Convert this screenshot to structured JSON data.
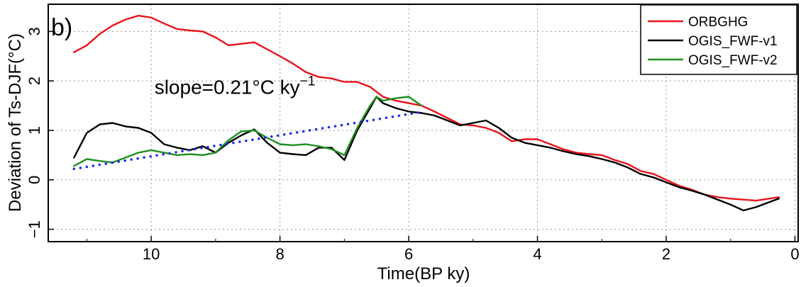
{
  "chart_data": {
    "type": "line",
    "panel_label": "b)",
    "xlabel": "Time(BP ky)",
    "ylabel": "Deviation of Ts-DJF(°C)",
    "xlim": [
      11.6,
      -0.05
    ],
    "ylim": [
      -1.25,
      3.55
    ],
    "x_reversed": true,
    "xticks": [
      10,
      8,
      6,
      4,
      2,
      0
    ],
    "xtick_labels": [
      "10",
      "8",
      "6",
      "4",
      "2",
      "0"
    ],
    "yticks": [
      -1,
      0,
      1,
      2,
      3
    ],
    "ytick_labels": [
      "−1",
      "0",
      "1",
      "2",
      "3"
    ],
    "grid": true,
    "legend_position": "top-right",
    "annotation": {
      "prefix": "slope=0.21°C ky",
      "superscript": "−1",
      "x": 9.95,
      "y": 1.74
    },
    "series": [
      {
        "name": "ORBGHG",
        "color": "#e8131b",
        "style": "solid",
        "x": [
          11.2,
          11.0,
          10.8,
          10.6,
          10.4,
          10.2,
          10.0,
          9.8,
          9.6,
          9.4,
          9.2,
          9.0,
          8.8,
          8.6,
          8.4,
          8.2,
          8.0,
          7.8,
          7.6,
          7.4,
          7.2,
          7.0,
          6.8,
          6.6,
          6.4,
          6.2,
          6.0,
          5.8,
          5.6,
          5.4,
          5.2,
          5.0,
          4.8,
          4.6,
          4.4,
          4.2,
          4.0,
          3.8,
          3.6,
          3.4,
          3.2,
          3.0,
          2.8,
          2.6,
          2.4,
          2.2,
          2.0,
          1.8,
          1.6,
          1.4,
          1.2,
          1.0,
          0.8,
          0.6,
          0.4,
          0.25
        ],
        "values": [
          2.58,
          2.72,
          2.95,
          3.12,
          3.24,
          3.32,
          3.28,
          3.16,
          3.05,
          3.02,
          3.0,
          2.88,
          2.72,
          2.75,
          2.78,
          2.64,
          2.5,
          2.35,
          2.18,
          2.08,
          2.05,
          1.98,
          1.98,
          1.88,
          1.68,
          1.6,
          1.55,
          1.5,
          1.38,
          1.25,
          1.12,
          1.1,
          1.05,
          0.95,
          0.78,
          0.82,
          0.82,
          0.72,
          0.62,
          0.55,
          0.52,
          0.5,
          0.4,
          0.32,
          0.18,
          0.12,
          0.0,
          -0.12,
          -0.2,
          -0.3,
          -0.35,
          -0.38,
          -0.4,
          -0.42,
          -0.38,
          -0.35
        ]
      },
      {
        "name": "OGIS_FWF-v1",
        "color": "#000000",
        "style": "solid",
        "x": [
          11.2,
          11.0,
          10.8,
          10.6,
          10.4,
          10.2,
          10.0,
          9.8,
          9.6,
          9.4,
          9.2,
          9.0,
          8.8,
          8.6,
          8.4,
          8.2,
          8.0,
          7.8,
          7.6,
          7.4,
          7.2,
          7.0,
          6.8,
          6.6,
          6.5,
          6.4,
          6.2,
          6.0,
          5.8,
          5.6,
          5.4,
          5.2,
          5.0,
          4.8,
          4.6,
          4.4,
          4.2,
          4.0,
          3.8,
          3.6,
          3.4,
          3.2,
          3.0,
          2.8,
          2.6,
          2.4,
          2.2,
          2.0,
          1.8,
          1.6,
          1.4,
          1.2,
          1.0,
          0.8,
          0.6,
          0.4,
          0.25
        ],
        "values": [
          0.45,
          0.95,
          1.12,
          1.15,
          1.08,
          1.05,
          0.95,
          0.72,
          0.65,
          0.6,
          0.68,
          0.55,
          0.75,
          0.9,
          1.02,
          0.75,
          0.55,
          0.52,
          0.5,
          0.65,
          0.65,
          0.4,
          1.0,
          1.45,
          1.68,
          1.55,
          1.45,
          1.38,
          1.35,
          1.3,
          1.2,
          1.1,
          1.15,
          1.2,
          1.05,
          0.85,
          0.75,
          0.7,
          0.65,
          0.58,
          0.52,
          0.48,
          0.42,
          0.35,
          0.25,
          0.12,
          0.05,
          -0.05,
          -0.15,
          -0.22,
          -0.3,
          -0.4,
          -0.5,
          -0.62,
          -0.55,
          -0.45,
          -0.38
        ]
      },
      {
        "name": "OGIS_FWF-v2",
        "color": "#1f8f1f",
        "style": "solid",
        "x": [
          11.2,
          11.0,
          10.8,
          10.6,
          10.4,
          10.2,
          10.0,
          9.8,
          9.6,
          9.4,
          9.2,
          9.0,
          8.8,
          8.6,
          8.4,
          8.2,
          8.0,
          7.8,
          7.6,
          7.4,
          7.2,
          7.0,
          6.8,
          6.6,
          6.5,
          6.4,
          6.2,
          6.0,
          5.8
        ],
        "values": [
          0.28,
          0.42,
          0.38,
          0.35,
          0.45,
          0.55,
          0.6,
          0.55,
          0.5,
          0.52,
          0.5,
          0.55,
          0.8,
          0.98,
          1.0,
          0.85,
          0.72,
          0.7,
          0.72,
          0.68,
          0.62,
          0.5,
          1.05,
          1.5,
          1.68,
          1.6,
          1.65,
          1.68,
          1.5
        ]
      },
      {
        "name": "",
        "color": "#1f2fe0",
        "style": "dotted",
        "x": [
          11.2,
          5.8
        ],
        "values": [
          0.22,
          1.37
        ]
      }
    ]
  }
}
